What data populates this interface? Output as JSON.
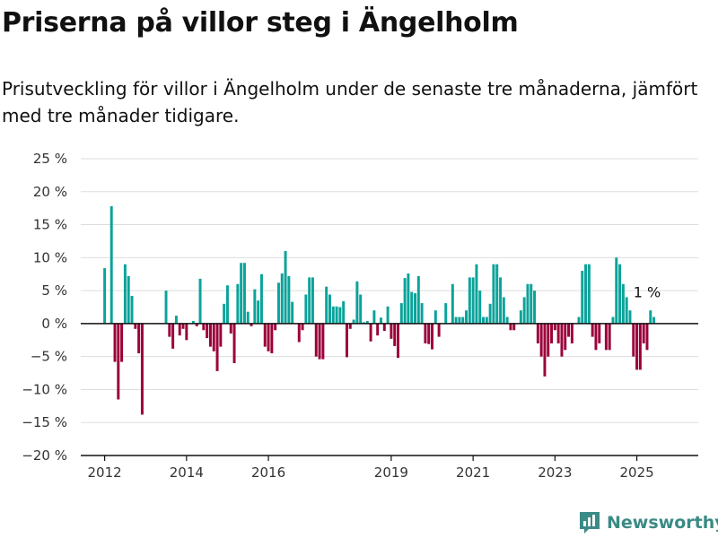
{
  "brand": {
    "name": "Newsworthy",
    "logo_icon": "newsworthy-logo-icon"
  },
  "colors": {
    "positive": "#0aa39a",
    "negative": "#9b0039",
    "grid": "#dddddd",
    "axis": "#111111"
  },
  "chart_data": {
    "type": "bar",
    "title": "Priserna på villor steg i Ängelholm",
    "subtitle": "Prisutveckling för villor i Ängelholm under de senaste tre månaderna, jämfört med tre månader tidigare.",
    "xlabel": "",
    "ylabel": "",
    "x_start": "2012-01",
    "x_end": "2025-04",
    "xlim": [
      "2011-06",
      "2026-07"
    ],
    "ylim": [
      -20,
      25
    ],
    "y_ticks": [
      -20,
      -15,
      -10,
      -5,
      0,
      5,
      10,
      15,
      20,
      25
    ],
    "y_tick_labels": [
      "−20 %",
      "−15 %",
      "−10 %",
      "−5 %",
      "0 %",
      "5 %",
      "10 %",
      "15 %",
      "20 %",
      "25 %"
    ],
    "x_ticks": [
      "2012",
      "2014",
      "2016",
      "2019",
      "2021",
      "2023",
      "2025"
    ],
    "x_tick_positions": [
      "2012-01",
      "2014-01",
      "2016-01",
      "2019-01",
      "2021-01",
      "2023-01",
      "2025-01"
    ],
    "grid": true,
    "annotation": {
      "label": "1 %",
      "at": "2025-04"
    },
    "values": [
      8.4,
      0,
      17.8,
      -5.8,
      -11.5,
      -5.8,
      9.0,
      7.2,
      4.2,
      -0.8,
      -4.5,
      -13.8,
      0,
      0,
      0,
      0,
      0,
      0,
      5.0,
      -2.0,
      -3.8,
      1.2,
      -1.8,
      -0.8,
      -2.5,
      0,
      0.4,
      -0.4,
      6.8,
      -1.0,
      -2.2,
      -3.5,
      -4.2,
      -7.2,
      -3.5,
      3.0,
      5.8,
      -1.5,
      -6.0,
      6.0,
      9.2,
      9.2,
      1.8,
      -0.4,
      5.2,
      3.5,
      7.5,
      -3.5,
      -4.2,
      -4.5,
      -1.0,
      6.2,
      7.6,
      11.0,
      7.2,
      3.3,
      0,
      -2.8,
      -1.0,
      4.4,
      7.0,
      7.0,
      -5.0,
      -5.4,
      -5.4,
      5.6,
      4.4,
      2.6,
      2.6,
      2.5,
      3.4,
      -5.1,
      -0.8,
      0.6,
      6.4,
      4.4,
      0.2,
      0.4,
      -2.7,
      2.0,
      -1.8,
      0.9,
      -1.1,
      2.6,
      -2.3,
      -3.4,
      -5.2,
      3.1,
      6.9,
      7.6,
      4.8,
      4.6,
      7.2,
      3.1,
      -3.0,
      -3.1,
      -3.9,
      2.0,
      -2.0,
      0.0,
      3.1,
      0,
      6.0,
      1.0,
      1.0,
      1.0,
      2.0,
      7.0,
      7.0,
      9.0,
      5.0,
      1.0,
      1.0,
      3.0,
      9.0,
      9.0,
      7.0,
      4.0,
      1.0,
      -1.0,
      -1.0,
      0.0,
      2.0,
      4.0,
      6.0,
      6.0,
      5.0,
      -3.0,
      -5.0,
      -8.0,
      -5.0,
      -3.0,
      -1.0,
      -3.0,
      -5.0,
      -4.0,
      -2.0,
      -3.0,
      0.0,
      1.0,
      8.0,
      9.0,
      9.0,
      -2.0,
      -4.0,
      -3.0,
      0.0,
      -4.0,
      -4.0,
      1.0,
      10.0,
      9.0,
      6.0,
      4.0,
      2.0,
      -5.0,
      -7.0,
      -7.0,
      -3.0,
      -4.0,
      2.0,
      1.0
    ]
  }
}
